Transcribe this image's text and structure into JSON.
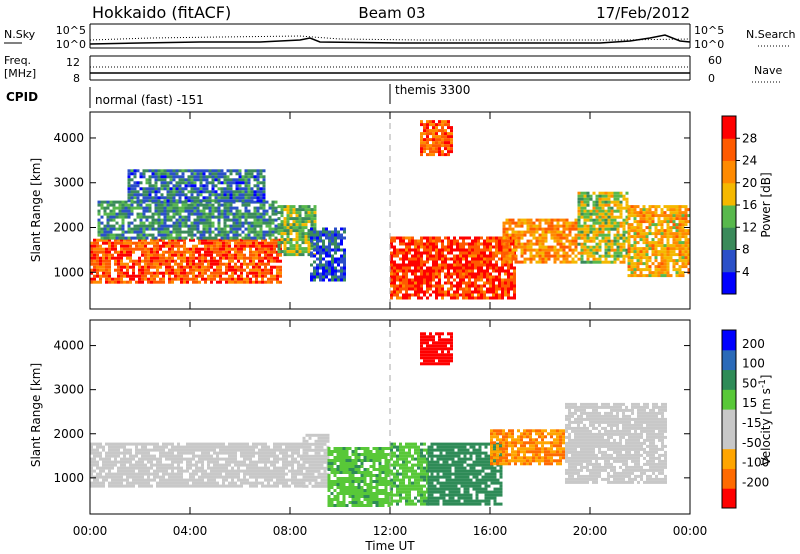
{
  "header": {
    "title": "Hokkaido (fitACF)",
    "beam": "Beam 03",
    "date": "17/Feb/2012"
  },
  "status_panels": {
    "nsky_label": "N.Sky",
    "nsky_ticks": [
      "10^5",
      "10^0"
    ],
    "nsearch_label": "N.Search",
    "nsearch_ticks": [
      "10^5",
      "10^0"
    ],
    "freq_label": "Freq.",
    "freq_unit": "[MHz]",
    "freq_ticks": [
      "12",
      "8"
    ],
    "nave_label": "Nave",
    "nave_ticks": [
      "60",
      "0"
    ],
    "cpid_label": "CPID",
    "cpid_segments": [
      {
        "text": "normal (fast) -151",
        "start_hour": 0
      },
      {
        "text": "themis 3300",
        "start_hour": 12
      }
    ]
  },
  "colors": {
    "power_scale": [
      "#0000ff",
      "#2b50c8",
      "#3a8a5a",
      "#58b84c",
      "#f5b800",
      "#ff8a00",
      "#ff5a00",
      "#ff0000"
    ],
    "velocity_scale": [
      "#ff0000",
      "#ff6a00",
      "#ffa500",
      "#c8c8c8",
      "#c8c8c8",
      "#58c838",
      "#2e8b57",
      "#2a6ab8",
      "#0000ff"
    ],
    "ground_scatter": "#c8c8c8"
  },
  "chart_data": [
    {
      "type": "heatmap",
      "name": "power",
      "ylabel": "Slant Range [km]",
      "xlabel": "Time UT",
      "x_ticks": [
        "00:00",
        "04:00",
        "08:00",
        "12:00",
        "16:00",
        "20:00",
        "00:00"
      ],
      "x_range_hours": [
        0,
        24
      ],
      "y_ticks": [
        1000,
        2000,
        3000,
        4000
      ],
      "y_range_km": [
        180,
        4580
      ],
      "colorbar": {
        "label": "Power [dB]",
        "ticks": [
          4,
          8,
          12,
          16,
          20,
          24,
          28
        ],
        "range": [
          0,
          32
        ]
      },
      "regions": [
        {
          "t0": 0.0,
          "t1": 7.6,
          "r0": 800,
          "r1": 1750,
          "level": 26
        },
        {
          "t0": 0.3,
          "t1": 7.5,
          "r0": 1750,
          "r1": 2600,
          "level": 10
        },
        {
          "t0": 1.5,
          "t1": 7.0,
          "r0": 2600,
          "r1": 3300,
          "level": 8
        },
        {
          "t0": 7.5,
          "t1": 9.0,
          "r0": 1400,
          "r1": 2500,
          "level": 14
        },
        {
          "t0": 8.8,
          "t1": 10.2,
          "r0": 800,
          "r1": 2000,
          "level": 6
        },
        {
          "t0": 12.0,
          "t1": 17.0,
          "r0": 400,
          "r1": 1800,
          "level": 28
        },
        {
          "t0": 16.5,
          "t1": 19.5,
          "r0": 1200,
          "r1": 2200,
          "level": 22
        },
        {
          "t0": 19.5,
          "t1": 21.5,
          "r0": 1200,
          "r1": 2800,
          "level": 16
        },
        {
          "t0": 21.5,
          "t1": 24.0,
          "r0": 900,
          "r1": 2500,
          "level": 20
        },
        {
          "t0": 13.2,
          "t1": 14.5,
          "r0": 3600,
          "r1": 4400,
          "level": 26
        }
      ]
    },
    {
      "type": "heatmap",
      "name": "velocity",
      "ylabel": "Slant Range [km]",
      "xlabel": "Time UT",
      "x_ticks": [
        "00:00",
        "04:00",
        "08:00",
        "12:00",
        "16:00",
        "20:00",
        "00:00"
      ],
      "x_range_hours": [
        0,
        24
      ],
      "y_ticks": [
        1000,
        2000,
        3000,
        4000
      ],
      "y_range_km": [
        180,
        4580
      ],
      "colorbar": {
        "label": "Velocity [m s^-1]",
        "ticks": [
          200,
          100,
          50,
          15,
          -15,
          -50,
          -100,
          -200
        ]
      },
      "regions": [
        {
          "t0": 0.0,
          "t1": 8.5,
          "r0": 800,
          "r1": 1800,
          "level": 0
        },
        {
          "t0": 8.5,
          "t1": 9.5,
          "r0": 800,
          "r1": 2000,
          "level": 0
        },
        {
          "t0": 9.5,
          "t1": 12.0,
          "r0": 400,
          "r1": 1700,
          "level": 40
        },
        {
          "t0": 12.0,
          "t1": 13.5,
          "r0": 400,
          "r1": 1800,
          "level": 40
        },
        {
          "t0": 13.5,
          "t1": 16.5,
          "r0": 400,
          "r1": 1800,
          "level": 70
        },
        {
          "t0": 16.0,
          "t1": 19.0,
          "r0": 1300,
          "r1": 2100,
          "level": -50
        },
        {
          "t0": 19.0,
          "t1": 23.0,
          "r0": 900,
          "r1": 2700,
          "level": 0
        },
        {
          "t0": 13.2,
          "t1": 14.5,
          "r0": 3600,
          "r1": 4300,
          "level": -200
        }
      ]
    }
  ]
}
